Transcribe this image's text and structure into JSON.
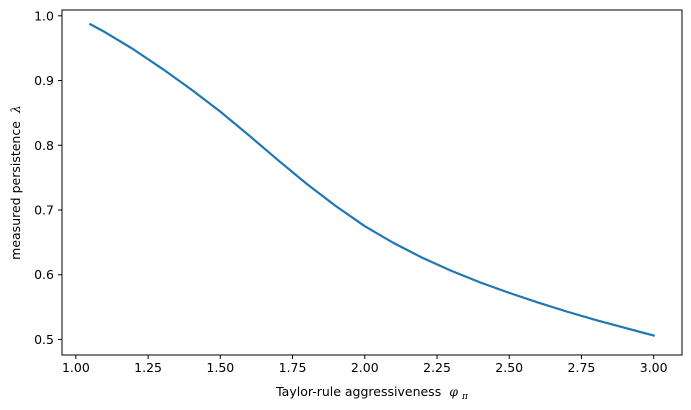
{
  "chart_data": {
    "type": "line",
    "xlabel": "Taylor-rule aggressiveness",
    "xlabel_symbol": "φ",
    "xlabel_subscript": "π",
    "ylabel": "measured persistence",
    "ylabel_symbol": "λ",
    "xlim": [
      0.952,
      3.098
    ],
    "ylim": [
      0.476,
      1.009
    ],
    "xticks": [
      1.0,
      1.25,
      1.5,
      1.75,
      2.0,
      2.25,
      2.5,
      2.75,
      3.0
    ],
    "xtick_labels": [
      "1.00",
      "1.25",
      "1.50",
      "1.75",
      "2.00",
      "2.25",
      "2.50",
      "2.75",
      "3.00"
    ],
    "yticks": [
      0.5,
      0.6,
      0.7,
      0.8,
      0.9,
      1.0
    ],
    "ytick_labels": [
      "0.5",
      "0.6",
      "0.7",
      "0.8",
      "0.9",
      "1.0"
    ],
    "grid": false,
    "series": [
      {
        "color": "#1f77b4",
        "x": [
          1.05,
          1.1,
          1.2,
          1.3,
          1.4,
          1.5,
          1.6,
          1.7,
          1.8,
          1.9,
          2.0,
          2.1,
          2.2,
          2.3,
          2.4,
          2.5,
          2.6,
          2.7,
          2.8,
          2.9,
          3.0
        ],
        "y": [
          0.987,
          0.975,
          0.948,
          0.918,
          0.886,
          0.852,
          0.815,
          0.777,
          0.74,
          0.706,
          0.675,
          0.649,
          0.626,
          0.606,
          0.588,
          0.572,
          0.557,
          0.543,
          0.53,
          0.518,
          0.506
        ]
      }
    ]
  }
}
